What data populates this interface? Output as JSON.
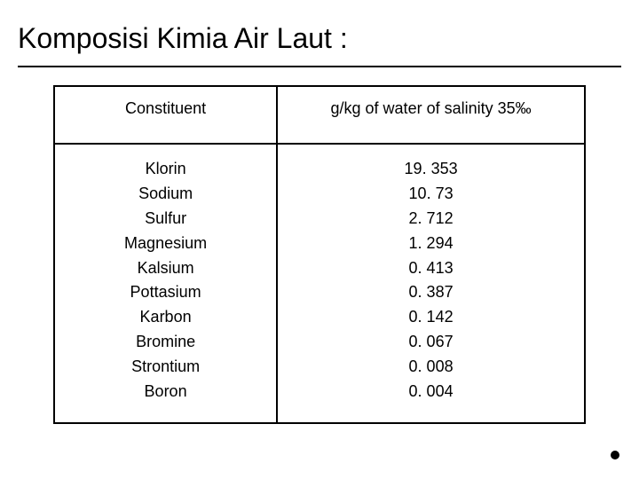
{
  "title": "Komposisi Kimia Air Laut :",
  "table": {
    "type": "table",
    "columns": [
      {
        "label": "Constituent",
        "width_pct": 42,
        "align": "center"
      },
      {
        "label": "g/kg of water of salinity 35‰",
        "width_pct": 58,
        "align": "center"
      }
    ],
    "rows": [
      [
        "Klorin",
        "19. 353"
      ],
      [
        "Sodium",
        "10. 73"
      ],
      [
        "Sulfur",
        "2. 712"
      ],
      [
        "Magnesium",
        "1. 294"
      ],
      [
        "Kalsium",
        "0. 413"
      ],
      [
        "Pottasium",
        "0. 387"
      ],
      [
        "Karbon",
        "0. 142"
      ],
      [
        "Bromine",
        "0. 067"
      ],
      [
        "Strontium",
        "0. 008"
      ],
      [
        "Boron",
        "0. 004"
      ]
    ],
    "border_color": "#000000",
    "border_width": 2,
    "header_fontsize": 18,
    "cell_fontsize": 18,
    "line_height": 1.55,
    "background_color": "#ffffff",
    "text_color": "#000000"
  },
  "title_fontsize": 32,
  "background_color": "#ffffff"
}
